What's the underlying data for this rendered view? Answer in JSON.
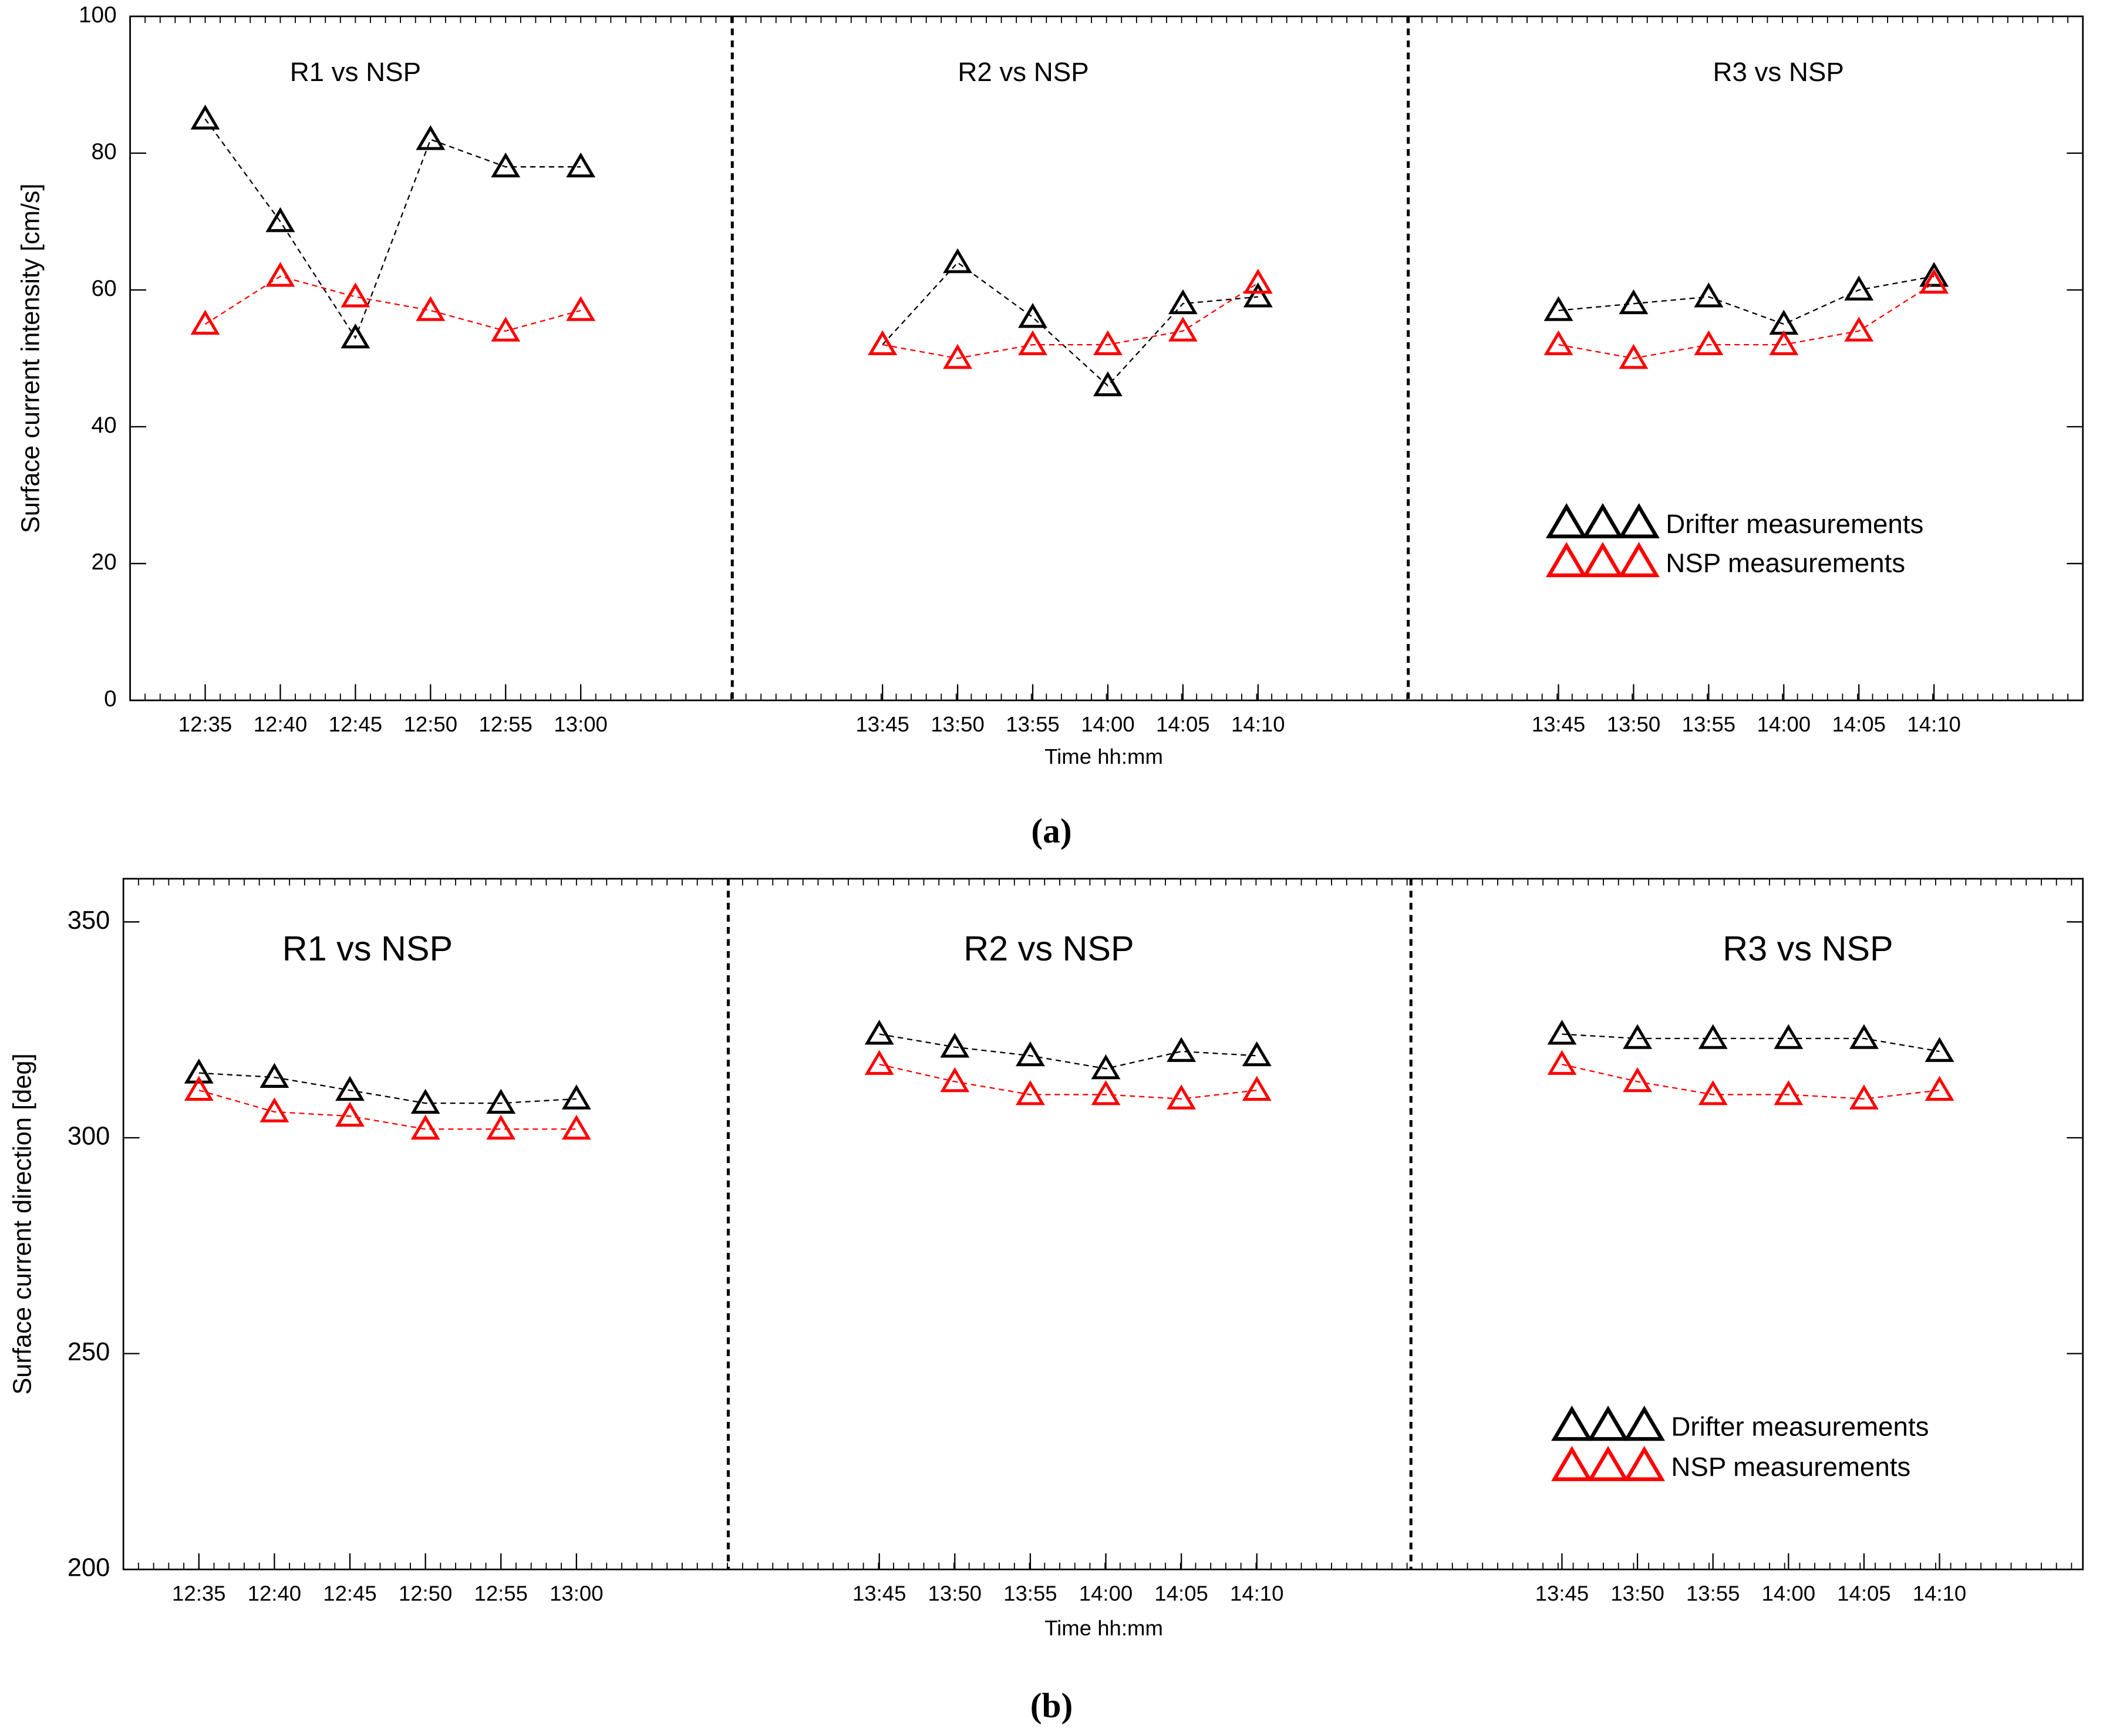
{
  "chart_data": [
    {
      "type": "line",
      "ylabel": "Surface current intensity [cm/s]",
      "xlabel": "Time hh:mm",
      "caption": "(a)",
      "ylim": [
        0,
        100
      ],
      "yticks": [
        0,
        20,
        40,
        60,
        80,
        100
      ],
      "panels": [
        {
          "title": "R1 vs NSP",
          "categories": [
            "12:35",
            "12:40",
            "12:45",
            "12:50",
            "12:55",
            "13:00"
          ]
        },
        {
          "title": "R2 vs NSP",
          "categories": [
            "13:45",
            "13:50",
            "13:55",
            "14:00",
            "14:05",
            "14:10"
          ]
        },
        {
          "title": "R3 vs NSP",
          "categories": [
            "13:45",
            "13:50",
            "13:55",
            "14:00",
            "14:05",
            "14:10"
          ]
        }
      ],
      "series": [
        {
          "name": "Drifter measurements",
          "color": "#000000",
          "values": [
            [
              85,
              70,
              53,
              82,
              78,
              78
            ],
            [
              52,
              64,
              56,
              46,
              58,
              59
            ],
            [
              57,
              58,
              59,
              55,
              60,
              62
            ]
          ]
        },
        {
          "name": "NSP measurements",
          "color": "#ff0000",
          "values": [
            [
              55,
              62,
              59,
              57,
              54,
              57
            ],
            [
              52,
              50,
              52,
              52,
              54,
              61
            ],
            [
              52,
              50,
              52,
              52,
              54,
              61
            ]
          ]
        }
      ]
    },
    {
      "type": "line",
      "ylabel": "Surface current direction [deg]",
      "xlabel": "Time hh:mm",
      "caption": "(b)",
      "ylim": [
        200,
        360
      ],
      "yticks": [
        200,
        250,
        300,
        350
      ],
      "panels": [
        {
          "title": "R1 vs NSP",
          "categories": [
            "12:35",
            "12:40",
            "12:45",
            "12:50",
            "12:55",
            "13:00"
          ]
        },
        {
          "title": "R2 vs NSP",
          "categories": [
            "13:45",
            "13:50",
            "13:55",
            "14:00",
            "14:05",
            "14:10"
          ]
        },
        {
          "title": "R3 vs NSP",
          "categories": [
            "13:45",
            "13:50",
            "13:55",
            "14:00",
            "14:05",
            "14:10"
          ]
        }
      ],
      "series": [
        {
          "name": "Drifter measurements",
          "color": "#000000",
          "values": [
            [
              315,
              314,
              311,
              308,
              308,
              309
            ],
            [
              324,
              321,
              319,
              316,
              320,
              319
            ],
            [
              324,
              323,
              323,
              323,
              323,
              320
            ]
          ]
        },
        {
          "name": "NSP measurements",
          "color": "#ff0000",
          "values": [
            [
              311,
              306,
              305,
              302,
              302,
              302
            ],
            [
              317,
              313,
              310,
              310,
              309,
              311
            ],
            [
              317,
              313,
              310,
              310,
              309,
              311
            ]
          ]
        }
      ]
    }
  ]
}
